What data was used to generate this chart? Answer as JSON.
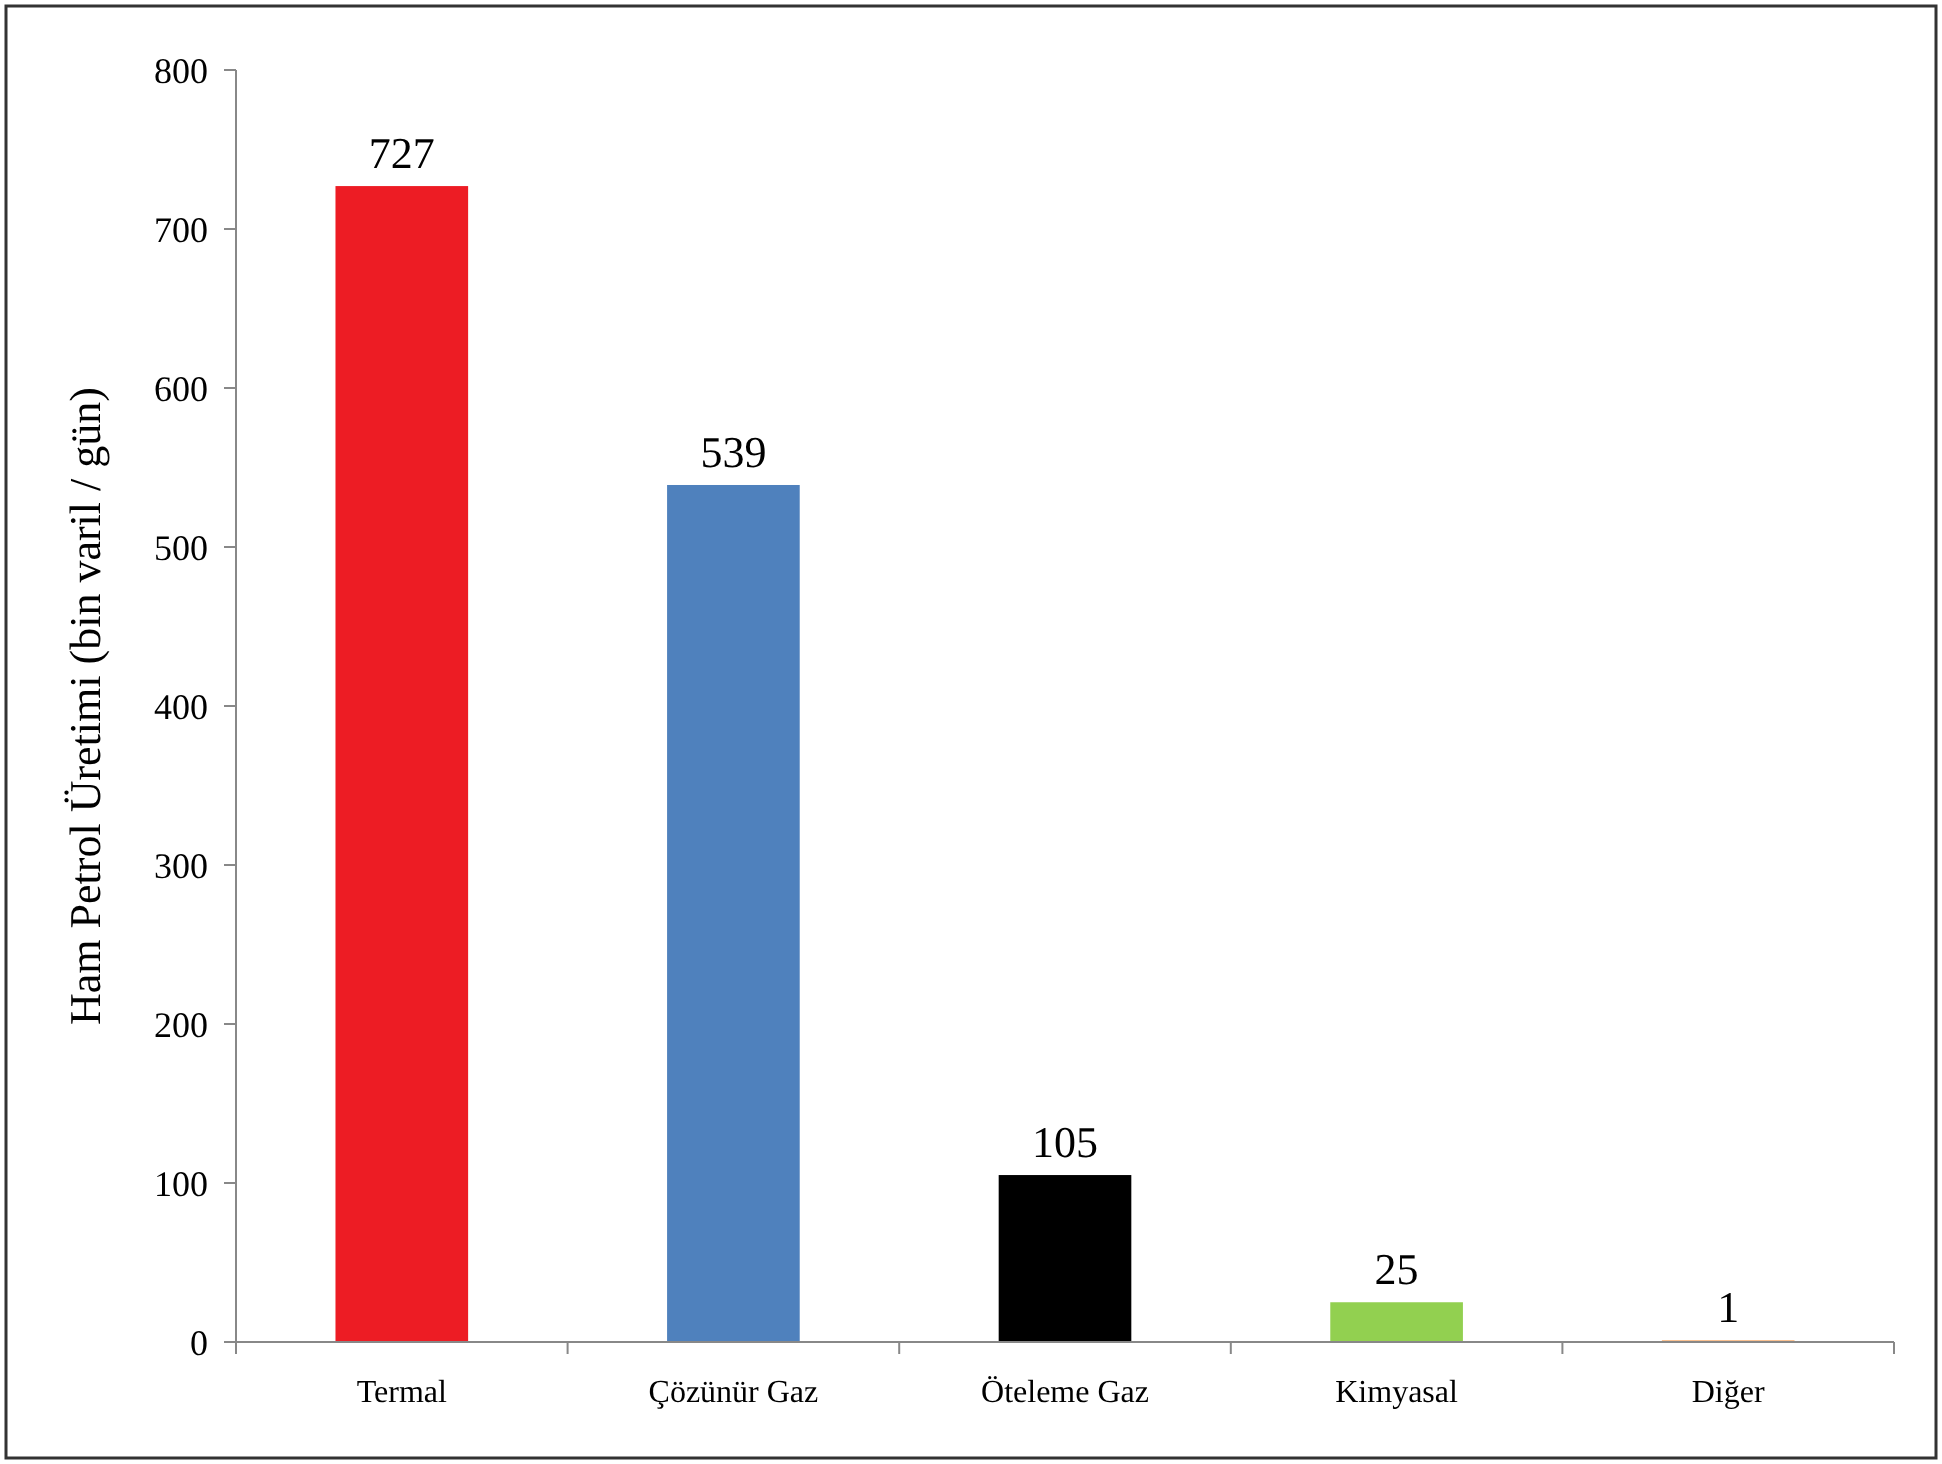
{
  "chart_data": {
    "type": "bar",
    "ylabel": "Ham Petrol Üretimi (bin varil / gün)",
    "categories": [
      "Termal",
      "Çözünür Gaz",
      "Öteleme Gaz",
      "Kimyasal",
      "Diğer"
    ],
    "values": [
      727,
      539,
      105,
      25,
      1
    ],
    "colors": [
      "#ed1c24",
      "#4f81bd",
      "#000000",
      "#92d050",
      "#f79646"
    ],
    "ylim": [
      0,
      800
    ],
    "yticks": [
      0,
      100,
      200,
      300,
      400,
      500,
      600,
      700,
      800
    ],
    "data_labels": true,
    "grid": false
  }
}
